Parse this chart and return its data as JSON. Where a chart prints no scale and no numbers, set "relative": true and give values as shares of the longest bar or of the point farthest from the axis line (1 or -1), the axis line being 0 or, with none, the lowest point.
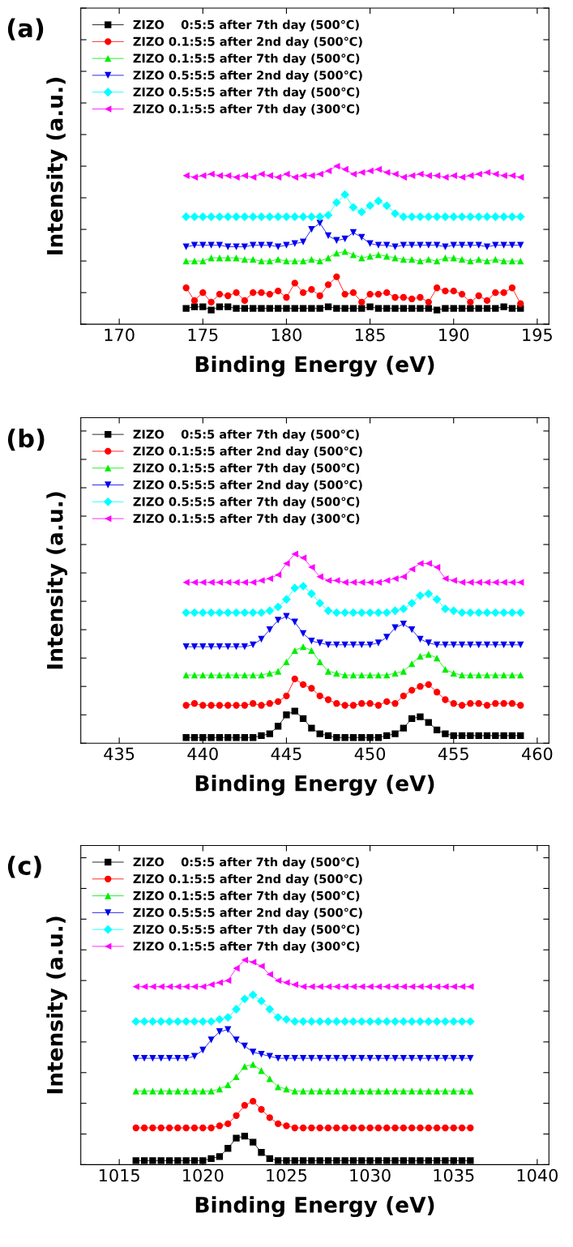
{
  "chart_data": [
    {
      "type": "line",
      "title": "(a)",
      "xlabel": "Binding Energy (eV)",
      "ylabel": "Intensity (a.u.)",
      "relative": true,
      "xlim": [
        167.7,
        195.7
      ],
      "xticks": [
        170,
        175,
        180,
        185,
        190,
        195
      ],
      "tick_labels": "x",
      "legend": "top left",
      "grid": false,
      "line_style": "solid",
      "x": [
        174,
        174.5,
        175,
        175.5,
        176,
        176.5,
        177,
        177.5,
        178,
        178.5,
        179,
        179.5,
        180,
        180.5,
        181,
        181.5,
        182,
        182.5,
        183,
        183.5,
        184,
        184.5,
        185,
        185.5,
        186,
        186.5,
        187,
        187.5,
        188,
        188.5,
        189,
        189.5,
        190,
        190.5,
        191,
        191.5,
        192,
        192.5,
        193,
        193.5,
        194
      ],
      "series": [
        {
          "name": "ZIZO    0:5:5 after 7th day (500℃)",
          "color": "#000000",
          "marker": "square",
          "values": [
            0.1,
            0.11,
            0.11,
            0.09,
            0.11,
            0.11,
            0.1,
            0.1,
            0.1,
            0.1,
            0.1,
            0.1,
            0.1,
            0.1,
            0.1,
            0.1,
            0.1,
            0.11,
            0.1,
            0.1,
            0.1,
            0.1,
            0.11,
            0.1,
            0.1,
            0.1,
            0.1,
            0.1,
            0.1,
            0.1,
            0.09,
            0.1,
            0.1,
            0.1,
            0.1,
            0.1,
            0.1,
            0.1,
            0.11,
            0.1,
            0.1
          ]
        },
        {
          "name": "ZIZO 0.1:5:5 after 2nd day (500℃)",
          "color": "#ff0000",
          "marker": "circle",
          "values": [
            0.23,
            0.15,
            0.2,
            0.14,
            0.19,
            0.18,
            0.2,
            0.15,
            0.2,
            0.2,
            0.19,
            0.21,
            0.17,
            0.26,
            0.2,
            0.22,
            0.18,
            0.25,
            0.3,
            0.19,
            0.2,
            0.14,
            0.19,
            0.19,
            0.2,
            0.17,
            0.17,
            0.16,
            0.17,
            0.14,
            0.23,
            0.21,
            0.21,
            0.19,
            0.14,
            0.18,
            0.15,
            0.2,
            0.2,
            0.23,
            0.13
          ]
        },
        {
          "name": "ZIZO 0.1:5:5 after 7th day (500℃)",
          "color": "#00ee00",
          "marker": "triangle",
          "values": [
            0.4,
            0.4,
            0.4,
            0.42,
            0.42,
            0.42,
            0.42,
            0.41,
            0.41,
            0.4,
            0.4,
            0.41,
            0.4,
            0.4,
            0.4,
            0.41,
            0.4,
            0.42,
            0.45,
            0.46,
            0.44,
            0.42,
            0.43,
            0.44,
            0.43,
            0.42,
            0.41,
            0.41,
            0.4,
            0.41,
            0.4,
            0.42,
            0.42,
            0.41,
            0.4,
            0.41,
            0.4,
            0.41,
            0.4,
            0.4,
            0.4
          ]
        },
        {
          "name": "ZIZO 0.5:5:5 after 2nd day (500℃)",
          "color": "#0000ee",
          "marker": "triangle_down",
          "values": [
            0.49,
            0.5,
            0.5,
            0.5,
            0.5,
            0.49,
            0.49,
            0.49,
            0.5,
            0.5,
            0.5,
            0.49,
            0.5,
            0.51,
            0.52,
            0.6,
            0.64,
            0.56,
            0.53,
            0.54,
            0.58,
            0.55,
            0.51,
            0.5,
            0.5,
            0.49,
            0.5,
            0.5,
            0.5,
            0.5,
            0.5,
            0.49,
            0.5,
            0.5,
            0.5,
            0.5,
            0.49,
            0.5,
            0.5,
            0.5,
            0.5
          ]
        },
        {
          "name": "ZIZO 0.5:5:5 after 7th day (500℃)",
          "color": "#00ffff",
          "marker": "diamond",
          "values": [
            0.68,
            0.68,
            0.68,
            0.68,
            0.68,
            0.68,
            0.68,
            0.68,
            0.68,
            0.68,
            0.68,
            0.68,
            0.68,
            0.68,
            0.68,
            0.68,
            0.68,
            0.69,
            0.77,
            0.82,
            0.74,
            0.71,
            0.75,
            0.78,
            0.75,
            0.7,
            0.68,
            0.68,
            0.68,
            0.68,
            0.68,
            0.68,
            0.68,
            0.68,
            0.68,
            0.68,
            0.68,
            0.68,
            0.68,
            0.68,
            0.68
          ]
        },
        {
          "name": "ZIZO 0.1:5:5 after 7th day (300℃)",
          "color": "#ff00ff",
          "marker": "triangle_left",
          "values": [
            0.94,
            0.93,
            0.94,
            0.95,
            0.94,
            0.94,
            0.93,
            0.94,
            0.93,
            0.95,
            0.94,
            0.93,
            0.95,
            0.93,
            0.94,
            0.94,
            0.95,
            0.97,
            1.0,
            0.98,
            0.95,
            0.96,
            0.97,
            0.98,
            0.96,
            0.95,
            0.93,
            0.94,
            0.95,
            0.94,
            0.94,
            0.93,
            0.94,
            0.93,
            0.94,
            0.95,
            0.96,
            0.95,
            0.94,
            0.94,
            0.93
          ]
        }
      ]
    },
    {
      "type": "line",
      "title": "(b)",
      "xlabel": "Binding Energy (eV)",
      "ylabel": "Intensity (a.u.)",
      "relative": true,
      "xlim": [
        432.7,
        460.7
      ],
      "xticks": [
        435,
        440,
        445,
        450,
        455,
        460
      ],
      "tick_labels": "x",
      "legend": "top left",
      "grid": false,
      "line_style": "solid",
      "x": [
        439,
        439.5,
        440,
        440.5,
        441,
        441.5,
        442,
        442.5,
        443,
        443.5,
        444,
        444.5,
        445,
        445.5,
        446,
        446.5,
        447,
        447.5,
        448,
        448.5,
        449,
        449.5,
        450,
        450.5,
        451,
        451.5,
        452,
        452.5,
        453,
        453.5,
        454,
        454.5,
        455,
        455.5,
        456,
        456.5,
        457,
        457.5,
        458,
        458.5,
        459
      ],
      "series": [
        {
          "name": "ZIZO    0:5:5 after 7th day (500℃)",
          "color": "#000000",
          "marker": "square",
          "values": [
            0.03,
            0.03,
            0.03,
            0.03,
            0.03,
            0.03,
            0.03,
            0.03,
            0.03,
            0.04,
            0.05,
            0.09,
            0.15,
            0.17,
            0.13,
            0.08,
            0.05,
            0.04,
            0.03,
            0.03,
            0.03,
            0.03,
            0.03,
            0.03,
            0.04,
            0.05,
            0.08,
            0.13,
            0.14,
            0.11,
            0.07,
            0.05,
            0.04,
            0.04,
            0.04,
            0.04,
            0.04,
            0.04,
            0.04,
            0.04,
            0.04
          ]
        },
        {
          "name": "ZIZO 0.1:5:5 after 2nd day (500℃)",
          "color": "#ff0000",
          "marker": "circle",
          "values": [
            0.2,
            0.21,
            0.2,
            0.2,
            0.2,
            0.2,
            0.2,
            0.2,
            0.21,
            0.2,
            0.21,
            0.22,
            0.25,
            0.34,
            0.31,
            0.29,
            0.25,
            0.23,
            0.21,
            0.2,
            0.2,
            0.21,
            0.21,
            0.2,
            0.22,
            0.21,
            0.25,
            0.28,
            0.3,
            0.31,
            0.27,
            0.23,
            0.21,
            0.2,
            0.21,
            0.21,
            0.2,
            0.21,
            0.21,
            0.21,
            0.2
          ]
        },
        {
          "name": "ZIZO 0.1:5:5 after 7th day (500℃)",
          "color": "#00ee00",
          "marker": "triangle",
          "values": [
            0.36,
            0.36,
            0.36,
            0.36,
            0.36,
            0.36,
            0.36,
            0.36,
            0.36,
            0.36,
            0.37,
            0.38,
            0.43,
            0.49,
            0.51,
            0.49,
            0.43,
            0.38,
            0.37,
            0.36,
            0.36,
            0.36,
            0.36,
            0.36,
            0.36,
            0.37,
            0.38,
            0.42,
            0.46,
            0.47,
            0.45,
            0.39,
            0.37,
            0.36,
            0.36,
            0.36,
            0.36,
            0.36,
            0.36,
            0.36,
            0.36
          ]
        },
        {
          "name": "ZIZO 0.5:5:5 after 2nd day (500℃)",
          "color": "#0000ee",
          "marker": "triangle_down",
          "values": [
            0.51,
            0.51,
            0.51,
            0.51,
            0.51,
            0.51,
            0.51,
            0.51,
            0.52,
            0.55,
            0.6,
            0.65,
            0.67,
            0.64,
            0.58,
            0.54,
            0.53,
            0.52,
            0.52,
            0.52,
            0.52,
            0.52,
            0.52,
            0.53,
            0.56,
            0.61,
            0.63,
            0.6,
            0.55,
            0.53,
            0.52,
            0.52,
            0.52,
            0.52,
            0.52,
            0.52,
            0.52,
            0.52,
            0.52,
            0.52,
            0.52
          ]
        },
        {
          "name": "ZIZO 0.5:5:5 after 7th day (500℃)",
          "color": "#00ffff",
          "marker": "diamond",
          "values": [
            0.69,
            0.69,
            0.69,
            0.69,
            0.69,
            0.69,
            0.69,
            0.69,
            0.69,
            0.69,
            0.7,
            0.72,
            0.76,
            0.82,
            0.83,
            0.79,
            0.74,
            0.7,
            0.69,
            0.69,
            0.69,
            0.69,
            0.69,
            0.69,
            0.69,
            0.7,
            0.71,
            0.74,
            0.78,
            0.79,
            0.76,
            0.71,
            0.7,
            0.69,
            0.69,
            0.69,
            0.69,
            0.69,
            0.69,
            0.69,
            0.69
          ]
        },
        {
          "name": "ZIZO 0.1:5:5 after 7th day (300℃)",
          "color": "#ff00ff",
          "marker": "triangle_left",
          "values": [
            0.85,
            0.85,
            0.85,
            0.85,
            0.85,
            0.85,
            0.85,
            0.85,
            0.85,
            0.86,
            0.87,
            0.89,
            0.95,
            1.0,
            0.98,
            0.93,
            0.88,
            0.86,
            0.86,
            0.85,
            0.85,
            0.85,
            0.85,
            0.85,
            0.86,
            0.87,
            0.88,
            0.92,
            0.95,
            0.95,
            0.93,
            0.87,
            0.86,
            0.85,
            0.85,
            0.85,
            0.85,
            0.85,
            0.85,
            0.85,
            0.85
          ]
        }
      ]
    },
    {
      "type": "line",
      "title": "(c)",
      "xlabel": "Binding Energy (eV)",
      "ylabel": "Intensity (a.u.)",
      "relative": true,
      "xlim": [
        1012.7,
        1040.7
      ],
      "xticks": [
        1015,
        1020,
        1025,
        1030,
        1035,
        1040
      ],
      "tick_labels": "x",
      "legend": "top left",
      "grid": false,
      "line_style": "solid",
      "x": [
        1016,
        1016.5,
        1017,
        1017.5,
        1018,
        1018.5,
        1019,
        1019.5,
        1020,
        1020.5,
        1021,
        1021.5,
        1022,
        1022.5,
        1023,
        1023.5,
        1024,
        1024.5,
        1025,
        1025.5,
        1026,
        1026.5,
        1027,
        1027.5,
        1028,
        1028.5,
        1029,
        1029.5,
        1030,
        1030.5,
        1031,
        1031.5,
        1032,
        1032.5,
        1033,
        1033.5,
        1034,
        1034.5,
        1035,
        1035.5,
        1036
      ],
      "series": [
        {
          "name": "ZIZO    0:5:5 after 7th day (500℃)",
          "color": "#000000",
          "marker": "square",
          "values": [
            0.02,
            0.02,
            0.02,
            0.02,
            0.02,
            0.02,
            0.02,
            0.02,
            0.02,
            0.03,
            0.04,
            0.08,
            0.13,
            0.14,
            0.11,
            0.06,
            0.03,
            0.02,
            0.02,
            0.02,
            0.02,
            0.02,
            0.02,
            0.02,
            0.02,
            0.02,
            0.02,
            0.02,
            0.02,
            0.02,
            0.02,
            0.02,
            0.02,
            0.02,
            0.02,
            0.02,
            0.02,
            0.02,
            0.02,
            0.02,
            0.02
          ]
        },
        {
          "name": "ZIZO 0.1:5:5 after 2nd day (500℃)",
          "color": "#ff0000",
          "marker": "circle",
          "values": [
            0.18,
            0.18,
            0.18,
            0.18,
            0.18,
            0.18,
            0.18,
            0.18,
            0.18,
            0.18,
            0.19,
            0.2,
            0.24,
            0.29,
            0.31,
            0.27,
            0.23,
            0.2,
            0.19,
            0.18,
            0.18,
            0.18,
            0.18,
            0.18,
            0.18,
            0.18,
            0.18,
            0.18,
            0.18,
            0.18,
            0.18,
            0.18,
            0.18,
            0.18,
            0.18,
            0.18,
            0.18,
            0.18,
            0.18,
            0.18,
            0.18
          ]
        },
        {
          "name": "ZIZO 0.1:5:5 after 7th day (500℃)",
          "color": "#00ee00",
          "marker": "triangle",
          "values": [
            0.36,
            0.36,
            0.36,
            0.36,
            0.36,
            0.36,
            0.36,
            0.36,
            0.36,
            0.36,
            0.37,
            0.39,
            0.43,
            0.48,
            0.49,
            0.46,
            0.42,
            0.38,
            0.37,
            0.36,
            0.36,
            0.36,
            0.36,
            0.36,
            0.36,
            0.36,
            0.36,
            0.36,
            0.36,
            0.36,
            0.36,
            0.36,
            0.36,
            0.36,
            0.36,
            0.36,
            0.36,
            0.36,
            0.36,
            0.36,
            0.36
          ]
        },
        {
          "name": "ZIZO 0.5:5:5 after 2nd day (500℃)",
          "color": "#0000ee",
          "marker": "triangle_down",
          "values": [
            0.52,
            0.52,
            0.52,
            0.52,
            0.52,
            0.52,
            0.52,
            0.53,
            0.56,
            0.61,
            0.65,
            0.66,
            0.61,
            0.58,
            0.55,
            0.54,
            0.53,
            0.52,
            0.52,
            0.52,
            0.52,
            0.52,
            0.52,
            0.52,
            0.52,
            0.52,
            0.52,
            0.52,
            0.52,
            0.52,
            0.52,
            0.52,
            0.52,
            0.52,
            0.52,
            0.52,
            0.52,
            0.52,
            0.52,
            0.52,
            0.52
          ]
        },
        {
          "name": "ZIZO 0.5:5:5 after 7th day (500℃)",
          "color": "#00ffff",
          "marker": "diamond",
          "values": [
            0.7,
            0.7,
            0.7,
            0.7,
            0.7,
            0.7,
            0.7,
            0.7,
            0.7,
            0.7,
            0.71,
            0.72,
            0.76,
            0.81,
            0.83,
            0.8,
            0.76,
            0.72,
            0.71,
            0.7,
            0.7,
            0.7,
            0.7,
            0.7,
            0.7,
            0.7,
            0.7,
            0.7,
            0.7,
            0.7,
            0.7,
            0.7,
            0.7,
            0.7,
            0.7,
            0.7,
            0.7,
            0.7,
            0.7,
            0.7,
            0.7
          ]
        },
        {
          "name": "ZIZO 0.1:5:5 after 7th day (300℃)",
          "color": "#ff00ff",
          "marker": "triangle_left",
          "values": [
            0.87,
            0.87,
            0.87,
            0.87,
            0.87,
            0.87,
            0.87,
            0.87,
            0.87,
            0.88,
            0.89,
            0.9,
            0.96,
            1.0,
            0.99,
            0.97,
            0.93,
            0.9,
            0.89,
            0.88,
            0.87,
            0.87,
            0.87,
            0.87,
            0.87,
            0.87,
            0.87,
            0.87,
            0.87,
            0.87,
            0.87,
            0.87,
            0.87,
            0.87,
            0.87,
            0.87,
            0.87,
            0.87,
            0.87,
            0.87,
            0.87
          ]
        }
      ]
    }
  ]
}
